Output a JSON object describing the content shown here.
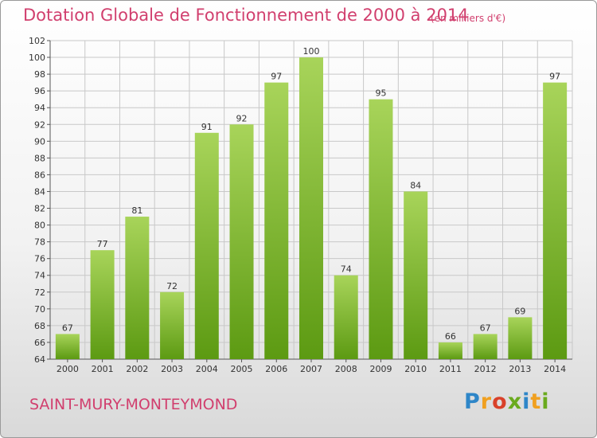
{
  "title": "Dotation Globale de Fonctionnement de 2000 à 2014",
  "subtitle": "(en milliers d'€)",
  "commune": "SAINT-MURY-MONTEYMOND",
  "logo": {
    "text": "Proxiti",
    "colors": [
      "#2e86c8",
      "#f0a020",
      "#d9412a",
      "#6aaa1e",
      "#2e86c8",
      "#f0a020",
      "#6aaa1e"
    ]
  },
  "colors": {
    "bar_light": "#a8d45a",
    "bar_dark": "#5c9a12",
    "grid": "#c8c8c8",
    "axis": "#555555",
    "title": "#d13f6e"
  },
  "chart_data": {
    "type": "bar",
    "title": "Dotation Globale de Fonctionnement de 2000 à 2014",
    "subtitle": "(en milliers d'€)",
    "categories": [
      "2000",
      "2001",
      "2002",
      "2003",
      "2004",
      "2005",
      "2006",
      "2007",
      "2008",
      "2009",
      "2010",
      "2011",
      "2012",
      "2013",
      "2014"
    ],
    "values": [
      67,
      77,
      81,
      72,
      91,
      92,
      97,
      100,
      74,
      95,
      84,
      66,
      67,
      69,
      97
    ],
    "ylim": [
      64,
      102
    ],
    "ytick_step": 2,
    "grid": true,
    "xlabel": "",
    "ylabel": ""
  }
}
